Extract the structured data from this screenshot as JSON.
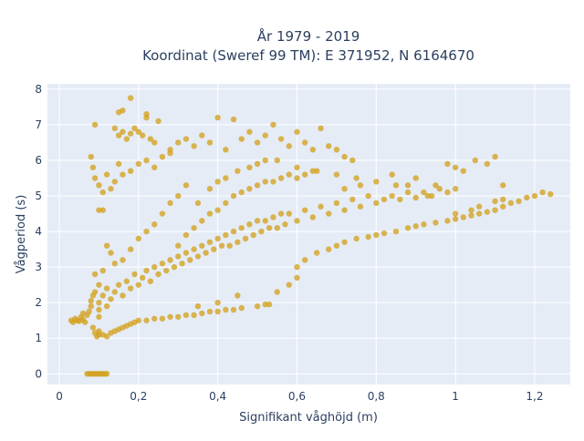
{
  "chart_data": {
    "type": "scatter",
    "title_line1": "År 1979 - 2019",
    "title_line2": "Koordinat (Sweref 99 TM): E 371952, N 6164670",
    "xlabel": "Signifikant våghöjd (m)",
    "ylabel": "Vågperiod (s)",
    "xlim": [
      -0.03,
      1.29
    ],
    "ylim": [
      -0.3,
      8.15
    ],
    "x_ticks": [
      0,
      0.2,
      0.4,
      0.6,
      0.8,
      1,
      1.2
    ],
    "x_tick_labels": [
      "0",
      "0,2",
      "0,4",
      "0,6",
      "0,8",
      "1",
      "1,2"
    ],
    "y_ticks": [
      0,
      1,
      2,
      3,
      4,
      5,
      6,
      7,
      8
    ],
    "y_tick_labels": [
      "0",
      "1",
      "2",
      "3",
      "4",
      "5",
      "6",
      "7",
      "8"
    ],
    "grid": true,
    "marker_color": "#d4a21f",
    "marker_opacity": 0.78,
    "background_color": "#e5ecf6",
    "points": [
      [
        0.03,
        1.5
      ],
      [
        0.035,
        1.45
      ],
      [
        0.04,
        1.55
      ],
      [
        0.045,
        1.5
      ],
      [
        0.05,
        1.48
      ],
      [
        0.055,
        1.6
      ],
      [
        0.06,
        1.52
      ],
      [
        0.065,
        1.45
      ],
      [
        0.06,
        1.7
      ],
      [
        0.07,
        1.65
      ],
      [
        0.075,
        1.75
      ],
      [
        0.08,
        1.9
      ],
      [
        0.08,
        2.05
      ],
      [
        0.085,
        2.2
      ],
      [
        0.09,
        2.3
      ],
      [
        0.085,
        1.3
      ],
      [
        0.09,
        1.15
      ],
      [
        0.095,
        1.05
      ],
      [
        0.1,
        1.1
      ],
      [
        0.1,
        1.2
      ],
      [
        0.11,
        1.1
      ],
      [
        0.12,
        1.05
      ],
      [
        0.13,
        1.15
      ],
      [
        0.14,
        1.2
      ],
      [
        0.15,
        1.25
      ],
      [
        0.16,
        1.3
      ],
      [
        0.17,
        1.35
      ],
      [
        0.18,
        1.4
      ],
      [
        0.19,
        1.45
      ],
      [
        0.2,
        1.5
      ],
      [
        0.22,
        1.5
      ],
      [
        0.24,
        1.55
      ],
      [
        0.26,
        1.55
      ],
      [
        0.28,
        1.6
      ],
      [
        0.3,
        1.6
      ],
      [
        0.32,
        1.65
      ],
      [
        0.34,
        1.65
      ],
      [
        0.36,
        1.7
      ],
      [
        0.38,
        1.75
      ],
      [
        0.4,
        1.75
      ],
      [
        0.42,
        1.8
      ],
      [
        0.44,
        1.8
      ],
      [
        0.46,
        1.85
      ],
      [
        0.5,
        1.9
      ],
      [
        0.52,
        1.95
      ],
      [
        0.1,
        1.6
      ],
      [
        0.1,
        1.8
      ],
      [
        0.1,
        2.0
      ],
      [
        0.11,
        2.2
      ],
      [
        0.12,
        2.4
      ],
      [
        0.12,
        1.9
      ],
      [
        0.13,
        2.1
      ],
      [
        0.14,
        2.3
      ],
      [
        0.15,
        2.5
      ],
      [
        0.16,
        2.2
      ],
      [
        0.17,
        2.6
      ],
      [
        0.18,
        2.4
      ],
      [
        0.19,
        2.8
      ],
      [
        0.2,
        2.5
      ],
      [
        0.21,
        2.7
      ],
      [
        0.22,
        2.9
      ],
      [
        0.23,
        2.6
      ],
      [
        0.24,
        3.0
      ],
      [
        0.25,
        2.8
      ],
      [
        0.26,
        3.1
      ],
      [
        0.27,
        2.9
      ],
      [
        0.28,
        3.2
      ],
      [
        0.29,
        3.0
      ],
      [
        0.3,
        3.3
      ],
      [
        0.31,
        3.1
      ],
      [
        0.32,
        3.4
      ],
      [
        0.33,
        3.2
      ],
      [
        0.34,
        3.5
      ],
      [
        0.35,
        3.3
      ],
      [
        0.36,
        3.6
      ],
      [
        0.37,
        3.4
      ],
      [
        0.38,
        3.7
      ],
      [
        0.39,
        3.5
      ],
      [
        0.4,
        3.8
      ],
      [
        0.41,
        3.6
      ],
      [
        0.42,
        3.9
      ],
      [
        0.43,
        3.6
      ],
      [
        0.44,
        4.0
      ],
      [
        0.45,
        3.7
      ],
      [
        0.46,
        4.1
      ],
      [
        0.47,
        3.8
      ],
      [
        0.48,
        4.2
      ],
      [
        0.49,
        3.9
      ],
      [
        0.5,
        4.3
      ],
      [
        0.51,
        4.0
      ],
      [
        0.52,
        4.3
      ],
      [
        0.53,
        4.1
      ],
      [
        0.54,
        4.4
      ],
      [
        0.55,
        4.1
      ],
      [
        0.56,
        4.5
      ],
      [
        0.57,
        4.2
      ],
      [
        0.58,
        4.5
      ],
      [
        0.6,
        4.3
      ],
      [
        0.62,
        4.6
      ],
      [
        0.64,
        4.4
      ],
      [
        0.66,
        4.7
      ],
      [
        0.68,
        4.5
      ],
      [
        0.7,
        4.8
      ],
      [
        0.72,
        4.6
      ],
      [
        0.74,
        4.9
      ],
      [
        0.76,
        4.7
      ],
      [
        0.78,
        5.0
      ],
      [
        0.8,
        4.8
      ],
      [
        0.82,
        4.9
      ],
      [
        0.84,
        5.0
      ],
      [
        0.86,
        4.9
      ],
      [
        0.88,
        5.1
      ],
      [
        0.9,
        4.95
      ],
      [
        0.92,
        5.1
      ],
      [
        0.94,
        5.0
      ],
      [
        0.96,
        5.2
      ],
      [
        0.98,
        5.1
      ],
      [
        0.3,
        3.6
      ],
      [
        0.32,
        3.9
      ],
      [
        0.34,
        4.1
      ],
      [
        0.36,
        4.3
      ],
      [
        0.38,
        4.5
      ],
      [
        0.4,
        4.6
      ],
      [
        0.42,
        4.8
      ],
      [
        0.44,
        5.0
      ],
      [
        0.46,
        5.1
      ],
      [
        0.48,
        5.2
      ],
      [
        0.5,
        5.3
      ],
      [
        0.52,
        5.4
      ],
      [
        0.54,
        5.4
      ],
      [
        0.56,
        5.5
      ],
      [
        0.58,
        5.6
      ],
      [
        0.6,
        5.5
      ],
      [
        0.62,
        5.6
      ],
      [
        0.64,
        5.7
      ],
      [
        0.35,
        4.8
      ],
      [
        0.38,
        5.2
      ],
      [
        0.4,
        5.4
      ],
      [
        0.42,
        5.5
      ],
      [
        0.45,
        5.7
      ],
      [
        0.48,
        5.8
      ],
      [
        0.5,
        5.9
      ],
      [
        0.52,
        6.0
      ],
      [
        0.55,
        6.0
      ],
      [
        0.3,
        5.0
      ],
      [
        0.32,
        5.3
      ],
      [
        0.28,
        4.8
      ],
      [
        0.26,
        4.5
      ],
      [
        0.24,
        4.2
      ],
      [
        0.22,
        4.0
      ],
      [
        0.2,
        3.8
      ],
      [
        0.18,
        3.5
      ],
      [
        0.16,
        3.2
      ],
      [
        0.6,
        3.0
      ],
      [
        0.62,
        3.2
      ],
      [
        0.65,
        3.4
      ],
      [
        0.68,
        3.5
      ],
      [
        0.7,
        3.6
      ],
      [
        0.72,
        3.7
      ],
      [
        0.75,
        3.8
      ],
      [
        0.78,
        3.85
      ],
      [
        0.8,
        3.9
      ],
      [
        0.82,
        3.95
      ],
      [
        0.85,
        4.0
      ],
      [
        0.88,
        4.1
      ],
      [
        0.9,
        4.15
      ],
      [
        0.92,
        4.2
      ],
      [
        0.95,
        4.25
      ],
      [
        0.98,
        4.3
      ],
      [
        1.0,
        4.35
      ],
      [
        1.02,
        4.4
      ],
      [
        1.04,
        4.45
      ],
      [
        1.06,
        4.5
      ],
      [
        1.08,
        4.55
      ],
      [
        1.1,
        4.6
      ],
      [
        1.12,
        4.7
      ],
      [
        1.14,
        4.8
      ],
      [
        1.16,
        4.85
      ],
      [
        1.18,
        4.95
      ],
      [
        1.2,
        5.0
      ],
      [
        1.22,
        5.1
      ],
      [
        1.24,
        5.05
      ],
      [
        1.12,
        4.9
      ],
      [
        1.1,
        4.85
      ],
      [
        1.06,
        4.7
      ],
      [
        1.04,
        4.6
      ],
      [
        1.0,
        4.5
      ],
      [
        0.15,
        6.7
      ],
      [
        0.16,
        6.8
      ],
      [
        0.17,
        6.6
      ],
      [
        0.18,
        6.75
      ],
      [
        0.19,
        6.9
      ],
      [
        0.2,
        6.8
      ],
      [
        0.21,
        6.7
      ],
      [
        0.22,
        7.2
      ],
      [
        0.23,
        6.6
      ],
      [
        0.24,
        6.5
      ],
      [
        0.14,
        6.9
      ],
      [
        0.15,
        7.35
      ],
      [
        0.16,
        7.4
      ],
      [
        0.18,
        7.75
      ],
      [
        0.09,
        7.0
      ],
      [
        0.22,
        7.3
      ],
      [
        0.25,
        7.1
      ],
      [
        0.28,
        6.3
      ],
      [
        0.3,
        6.5
      ],
      [
        0.32,
        6.6
      ],
      [
        0.34,
        6.4
      ],
      [
        0.36,
        6.7
      ],
      [
        0.38,
        6.5
      ],
      [
        0.4,
        7.2
      ],
      [
        0.42,
        6.3
      ],
      [
        0.44,
        7.15
      ],
      [
        0.46,
        6.6
      ],
      [
        0.48,
        6.8
      ],
      [
        0.5,
        6.5
      ],
      [
        0.52,
        6.7
      ],
      [
        0.54,
        7.0
      ],
      [
        0.56,
        6.6
      ],
      [
        0.58,
        6.4
      ],
      [
        0.6,
        6.8
      ],
      [
        0.62,
        6.5
      ],
      [
        0.64,
        6.3
      ],
      [
        0.66,
        6.9
      ],
      [
        0.68,
        6.4
      ],
      [
        0.7,
        6.3
      ],
      [
        0.72,
        6.1
      ],
      [
        0.74,
        6.0
      ],
      [
        0.08,
        6.1
      ],
      [
        0.085,
        5.8
      ],
      [
        0.09,
        5.5
      ],
      [
        0.1,
        5.3
      ],
      [
        0.11,
        5.1
      ],
      [
        0.12,
        5.6
      ],
      [
        0.13,
        5.2
      ],
      [
        0.14,
        5.4
      ],
      [
        0.15,
        5.9
      ],
      [
        0.1,
        4.6
      ],
      [
        0.11,
        4.6
      ],
      [
        0.16,
        5.6
      ],
      [
        0.18,
        5.7
      ],
      [
        0.2,
        5.9
      ],
      [
        0.22,
        6.0
      ],
      [
        0.24,
        5.8
      ],
      [
        0.26,
        6.1
      ],
      [
        0.28,
        6.2
      ],
      [
        0.12,
        3.6
      ],
      [
        0.13,
        3.4
      ],
      [
        0.14,
        3.1
      ],
      [
        0.11,
        2.9
      ],
      [
        0.09,
        2.8
      ],
      [
        0.1,
        2.5
      ],
      [
        0.6,
        5.8
      ],
      [
        0.65,
        5.7
      ],
      [
        0.7,
        5.6
      ],
      [
        0.75,
        5.5
      ],
      [
        0.8,
        5.4
      ],
      [
        0.85,
        5.3
      ],
      [
        0.9,
        5.5
      ],
      [
        0.95,
        5.3
      ],
      [
        1.0,
        5.2
      ],
      [
        0.72,
        5.2
      ],
      [
        0.76,
        5.3
      ],
      [
        0.84,
        5.6
      ],
      [
        0.88,
        5.3
      ],
      [
        0.93,
        5.0
      ],
      [
        0.07,
        0.0
      ],
      [
        0.08,
        0.0
      ],
      [
        0.09,
        0.0
      ],
      [
        0.1,
        0.0
      ],
      [
        0.11,
        0.0
      ],
      [
        0.12,
        0.0
      ],
      [
        0.075,
        0.0
      ],
      [
        0.085,
        0.0
      ],
      [
        0.095,
        0.0
      ],
      [
        0.105,
        0.0
      ],
      [
        0.115,
        0.0
      ],
      [
        0.98,
        5.9
      ],
      [
        1.0,
        5.8
      ],
      [
        1.02,
        5.7
      ],
      [
        1.05,
        6.0
      ],
      [
        1.08,
        5.9
      ],
      [
        1.1,
        6.1
      ],
      [
        1.12,
        5.3
      ],
      [
        0.53,
        1.95
      ],
      [
        0.55,
        2.3
      ],
      [
        0.58,
        2.5
      ],
      [
        0.6,
        2.7
      ],
      [
        0.45,
        2.2
      ],
      [
        0.4,
        2.0
      ],
      [
        0.35,
        1.9
      ]
    ]
  }
}
